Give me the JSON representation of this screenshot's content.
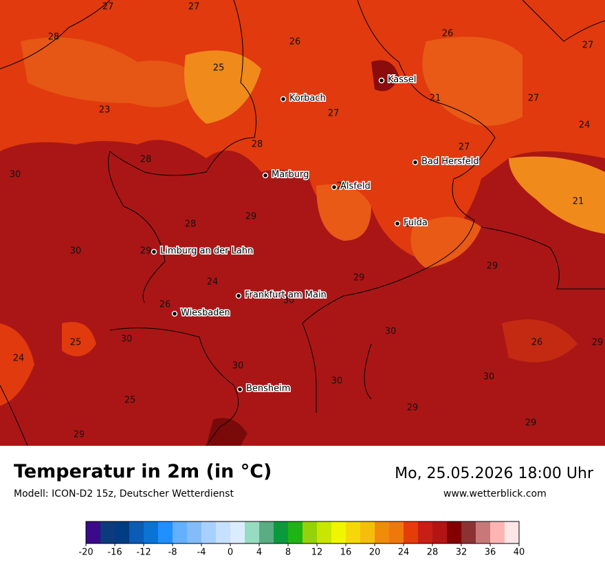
{
  "header": {
    "title": "Temperatur in 2m (in °C)",
    "subtitle": "Modell: ICON-D2 15z, Deutscher Wetterdienst",
    "datetime": "Mo, 25.05.2026 18:00 Uhr",
    "website": "www.wetterblick.com"
  },
  "map": {
    "cities": [
      "Kassel",
      "Korbach",
      "Marburg",
      "Alsfeld",
      "Bad Hersfeld",
      "Fulda",
      "Limburg an der Lahn",
      "Frankfurt am Main",
      "Wiesbaden",
      "Bensheim"
    ],
    "temperatures": [
      27,
      27,
      28,
      26,
      26,
      27,
      25,
      23,
      27,
      21,
      27,
      24,
      28,
      27,
      28,
      30,
      29,
      21,
      28,
      29,
      28,
      30,
      29,
      29,
      24,
      29,
      26,
      30,
      30,
      25,
      30,
      26,
      29,
      24,
      30,
      30,
      30,
      25,
      29,
      29,
      29
    ]
  },
  "colorbar": {
    "range": [
      -20,
      40
    ],
    "ticks": [
      -20,
      -16,
      -12,
      -8,
      -4,
      0,
      4,
      8,
      12,
      16,
      20,
      24,
      28,
      32,
      36,
      40
    ],
    "colors": [
      "#3a0a8a",
      "#0d3a7d",
      "#003c82",
      "#0a5cb5",
      "#0a74d6",
      "#1e90ff",
      "#63b0ff",
      "#82bdfa",
      "#a8d0ff",
      "#c6e0ff",
      "#dcecff",
      "#96dcc0",
      "#5aac82",
      "#0a9a3c",
      "#1eb414",
      "#96d20a",
      "#c8e600",
      "#f0f500",
      "#f5d70a",
      "#f5be0a",
      "#f08c0a",
      "#f0780a",
      "#e63c0a",
      "#c81e14",
      "#b41414",
      "#820000",
      "#8c3232",
      "#c87878",
      "#ffb4b4",
      "#ffe6e6"
    ]
  }
}
